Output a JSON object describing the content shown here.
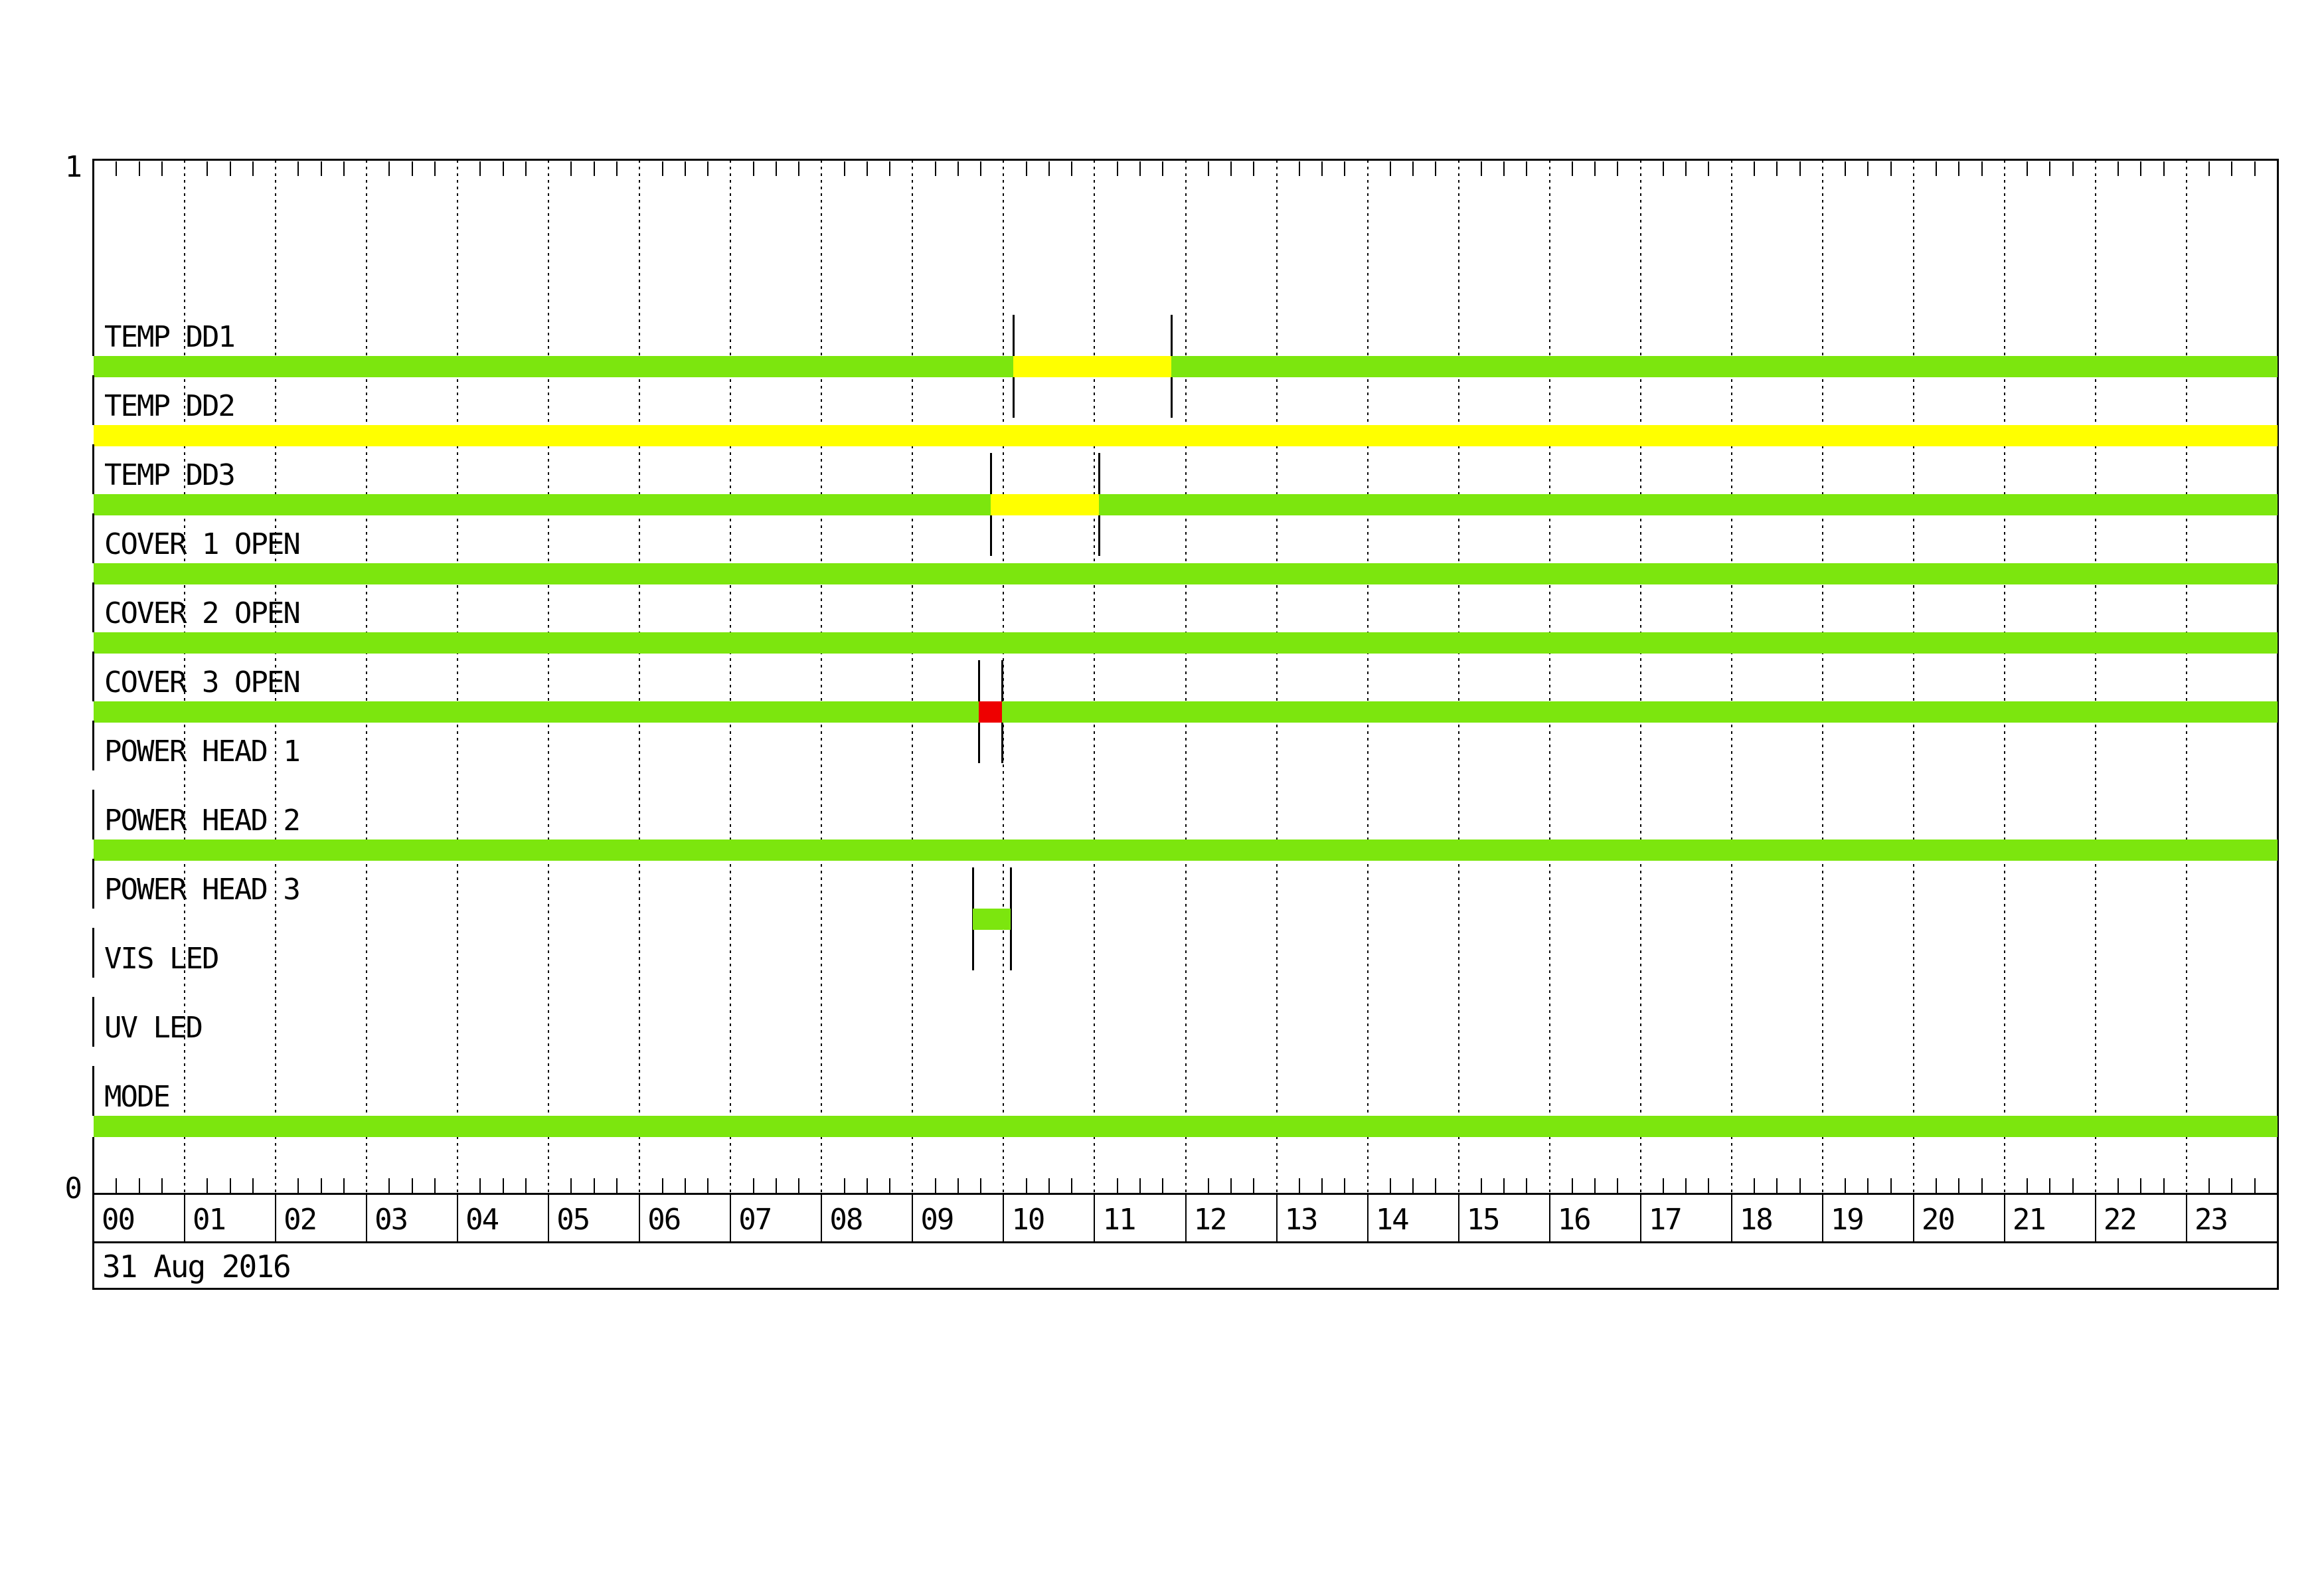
{
  "date_band": {
    "label": "31 Aug 2016"
  },
  "y_axis": {
    "top_label": "1",
    "bottom_label": "0"
  },
  "chart_data": {
    "type": "timeline",
    "title": "",
    "date": "31 Aug 2016",
    "x_axis": {
      "unit": "hour",
      "range": [
        0,
        24
      ],
      "tick_labels": [
        "00",
        "01",
        "02",
        "03",
        "04",
        "05",
        "06",
        "07",
        "08",
        "09",
        "10",
        "11",
        "12",
        "13",
        "14",
        "15",
        "16",
        "17",
        "18",
        "19",
        "20",
        "21",
        "22",
        "23"
      ],
      "minor_tick_minutes": 15,
      "gridlines": true
    },
    "y_axis": {
      "top_label": "1",
      "bottom_label": "0",
      "range": [
        0,
        1
      ]
    },
    "state_colors": {
      "ok": "#7CE60E",
      "warn": "#FFFF00",
      "alert": "#EE0000"
    },
    "rows": [
      {
        "label": "TEMP DD1",
        "segments": [
          {
            "start": 0,
            "end": 10.11,
            "state": "ok"
          },
          {
            "start": 10.11,
            "end": 11.84,
            "state": "warn"
          },
          {
            "start": 11.84,
            "end": 24,
            "state": "ok"
          }
        ],
        "markers": [
          10.11,
          11.84
        ]
      },
      {
        "label": "TEMP DD2",
        "segments": [
          {
            "start": 0,
            "end": 24,
            "state": "warn"
          }
        ],
        "markers": []
      },
      {
        "label": "TEMP DD3",
        "segments": [
          {
            "start": 0,
            "end": 9.86,
            "state": "ok"
          },
          {
            "start": 9.86,
            "end": 11.05,
            "state": "warn"
          },
          {
            "start": 11.05,
            "end": 24,
            "state": "ok"
          }
        ],
        "markers": [
          9.86,
          11.05
        ]
      },
      {
        "label": "COVER 1 OPEN",
        "segments": [
          {
            "start": 0,
            "end": 24,
            "state": "ok"
          }
        ],
        "markers": []
      },
      {
        "label": "COVER 2 OPEN",
        "segments": [
          {
            "start": 0,
            "end": 24,
            "state": "ok"
          }
        ],
        "markers": []
      },
      {
        "label": "COVER 3 OPEN",
        "segments": [
          {
            "start": 0,
            "end": 9.73,
            "state": "ok"
          },
          {
            "start": 9.73,
            "end": 9.98,
            "state": "alert"
          },
          {
            "start": 9.98,
            "end": 24,
            "state": "ok"
          }
        ],
        "markers": [
          9.73,
          9.98
        ]
      },
      {
        "label": "POWER HEAD 1",
        "segments": [],
        "markers": []
      },
      {
        "label": "POWER HEAD 2",
        "segments": [
          {
            "start": 0,
            "end": 24,
            "state": "ok"
          }
        ],
        "markers": []
      },
      {
        "label": "POWER HEAD 3",
        "segments": [
          {
            "start": 9.66,
            "end": 10.08,
            "state": "ok"
          }
        ],
        "markers": [
          9.66,
          10.08
        ]
      },
      {
        "label": "VIS LED",
        "segments": [],
        "markers": []
      },
      {
        "label": "UV LED",
        "segments": [],
        "markers": []
      },
      {
        "label": "MODE",
        "segments": [
          {
            "start": 0,
            "end": 24,
            "state": "ok"
          }
        ],
        "markers": []
      }
    ]
  }
}
